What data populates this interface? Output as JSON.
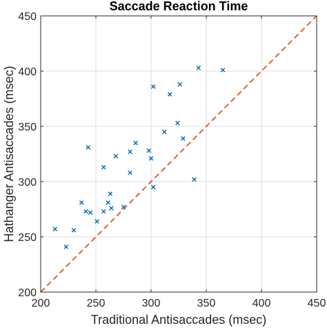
{
  "chart_data": {
    "type": "scatter",
    "title": "Saccade Reaction Time",
    "xlabel": "Traditional Antisaccades (msec)",
    "ylabel": "Hathanger Antisaccades (msec)",
    "xlim": [
      200,
      450
    ],
    "ylim": [
      200,
      450
    ],
    "xticks": [
      200,
      250,
      300,
      350,
      400,
      450
    ],
    "yticks": [
      200,
      250,
      300,
      350,
      400,
      450
    ],
    "grid": true,
    "marker": "x",
    "colors": {
      "points": "#0072bd",
      "reference": "#d95319",
      "grid": "#dcdcdc",
      "axis": "#262626"
    },
    "reference_line": {
      "style": "dashed",
      "from": [
        200,
        200
      ],
      "to": [
        450,
        450
      ]
    },
    "points": [
      {
        "x": 213,
        "y": 257
      },
      {
        "x": 223,
        "y": 241
      },
      {
        "x": 230,
        "y": 256
      },
      {
        "x": 237,
        "y": 281
      },
      {
        "x": 241,
        "y": 273
      },
      {
        "x": 243,
        "y": 331
      },
      {
        "x": 245,
        "y": 272
      },
      {
        "x": 251,
        "y": 264
      },
      {
        "x": 257,
        "y": 273
      },
      {
        "x": 257,
        "y": 313
      },
      {
        "x": 261,
        "y": 281
      },
      {
        "x": 263,
        "y": 289
      },
      {
        "x": 264,
        "y": 276
      },
      {
        "x": 268,
        "y": 323
      },
      {
        "x": 275,
        "y": 277
      },
      {
        "x": 281,
        "y": 308
      },
      {
        "x": 281,
        "y": 327
      },
      {
        "x": 286,
        "y": 335
      },
      {
        "x": 298,
        "y": 328
      },
      {
        "x": 300,
        "y": 321
      },
      {
        "x": 302,
        "y": 295
      },
      {
        "x": 302,
        "y": 386
      },
      {
        "x": 312,
        "y": 345
      },
      {
        "x": 317,
        "y": 379
      },
      {
        "x": 324,
        "y": 353
      },
      {
        "x": 326,
        "y": 388
      },
      {
        "x": 329,
        "y": 339
      },
      {
        "x": 339,
        "y": 302
      },
      {
        "x": 343,
        "y": 403
      },
      {
        "x": 365,
        "y": 401
      }
    ]
  }
}
